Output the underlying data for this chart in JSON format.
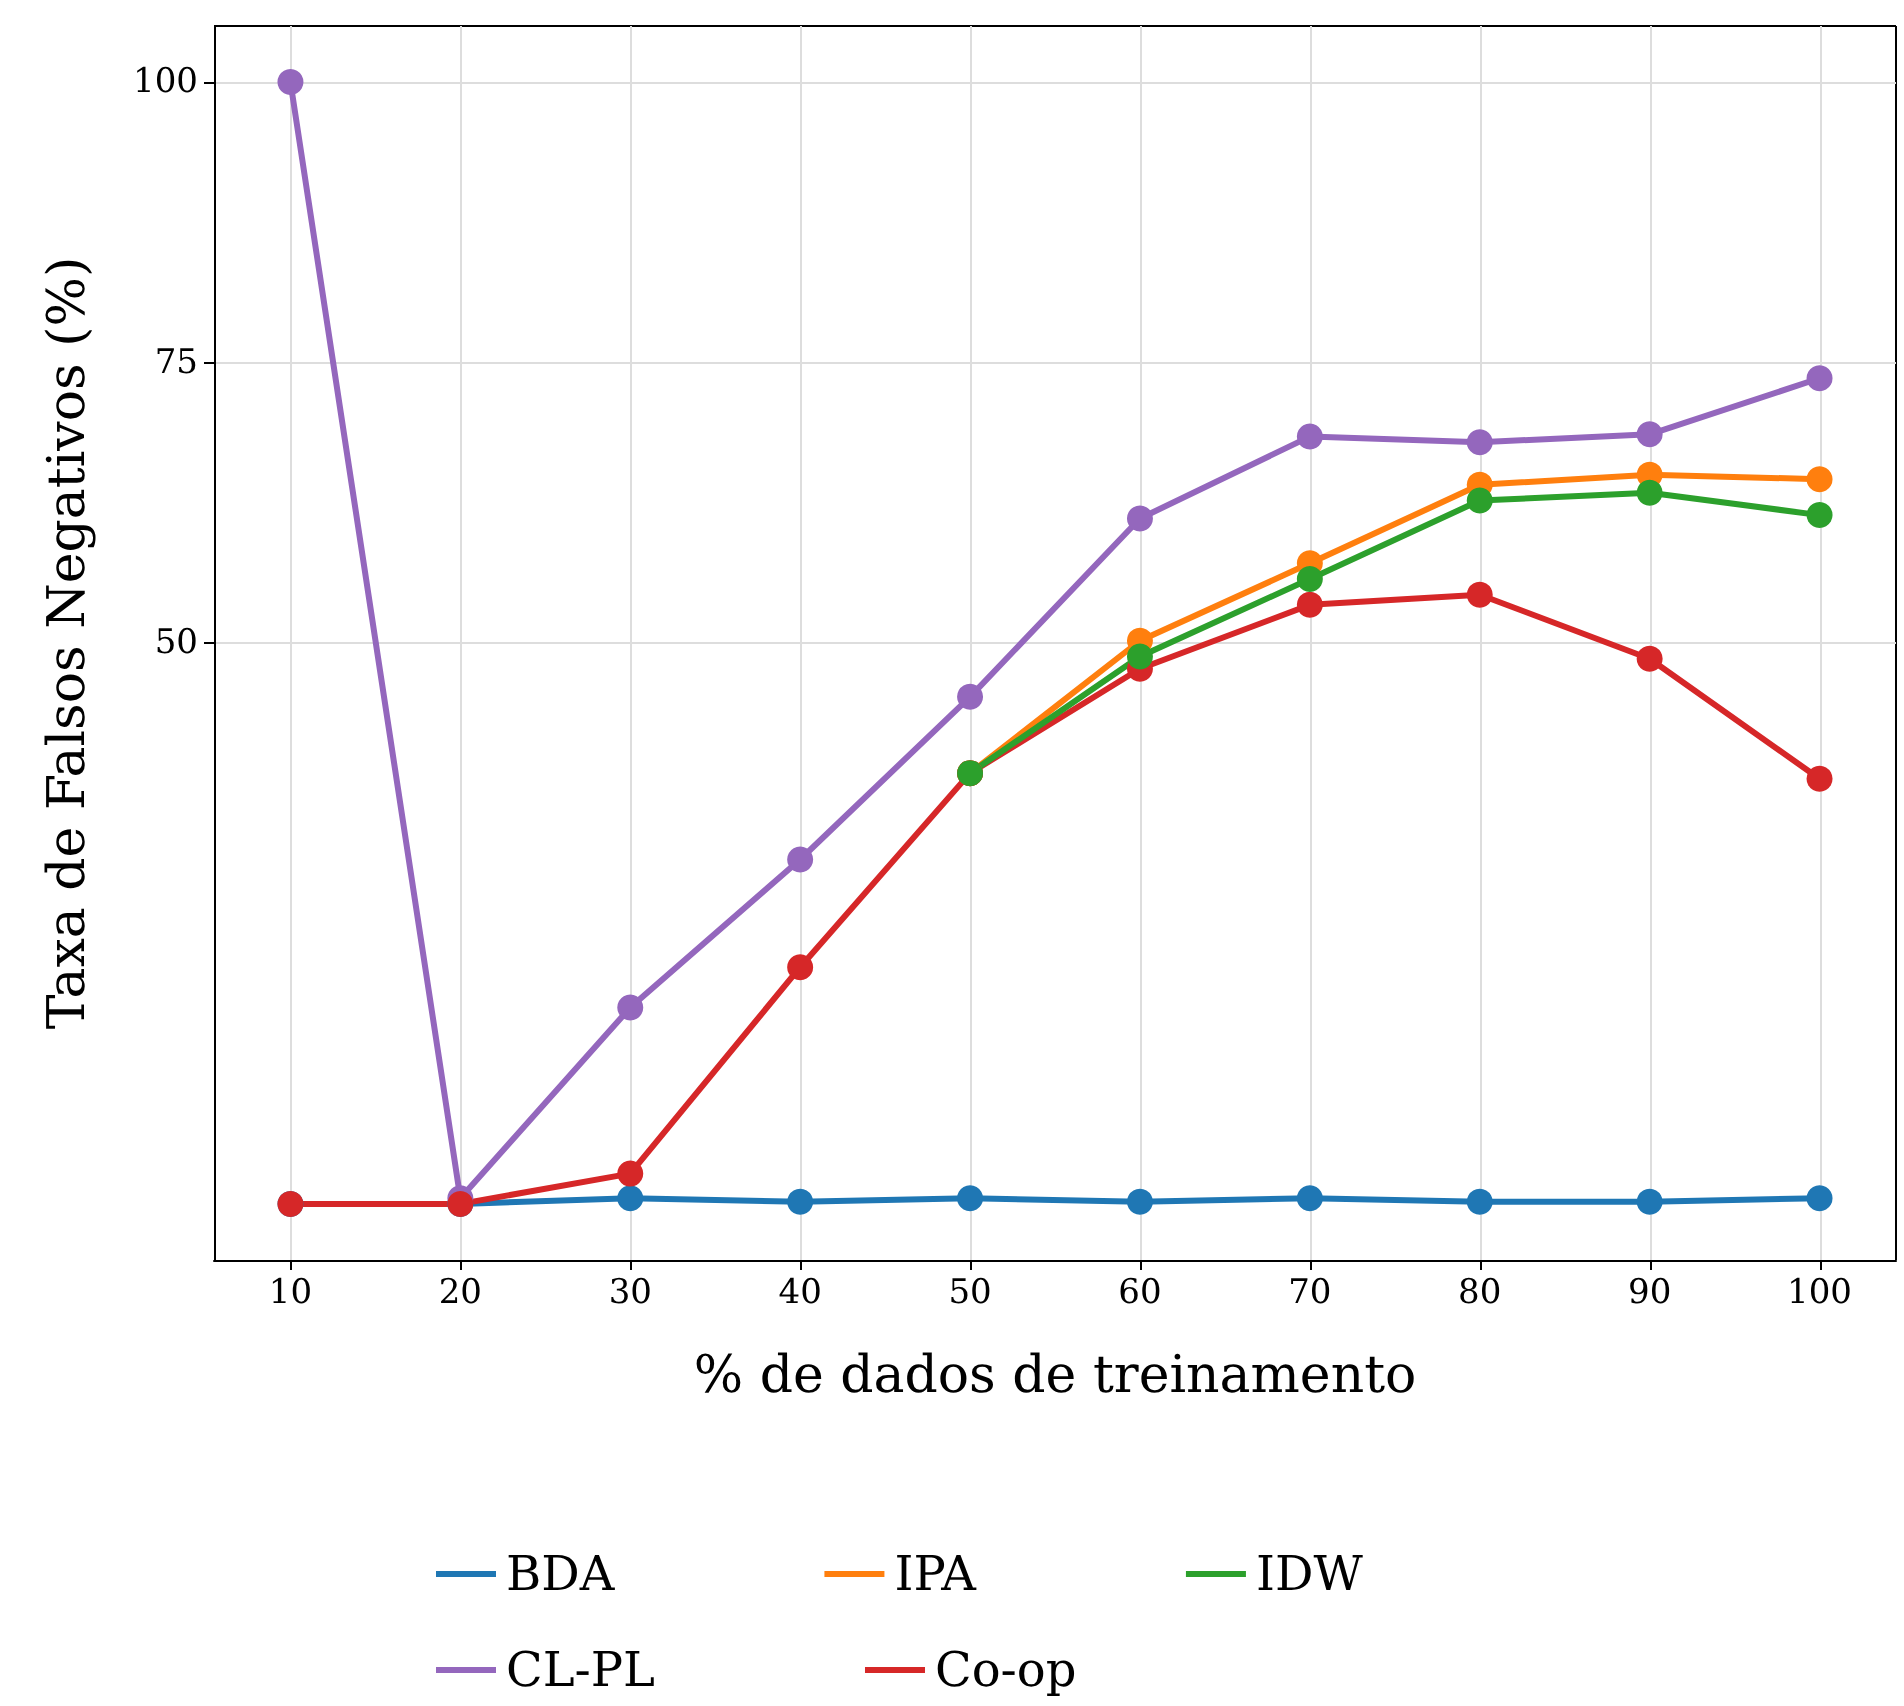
{
  "chart_data": {
    "type": "line",
    "xlabel": "% de dados de treinamento",
    "ylabel": "Taxa de Falsos Negativos (%)",
    "x": [
      10,
      20,
      30,
      40,
      50,
      60,
      70,
      80,
      90,
      100
    ],
    "series": [
      {
        "name": "BDA",
        "color": "#1f77b4",
        "values": [
          0,
          0,
          0.5,
          0.2,
          0.5,
          0.2,
          0.5,
          0.2,
          0.2,
          0.5
        ]
      },
      {
        "name": "CL-PL",
        "color": "#9467bd",
        "values": [
          100,
          0.5,
          17.5,
          30.7,
          45.2,
          61.1,
          68.4,
          67.9,
          68.6,
          73.6
        ]
      },
      {
        "name": "IPA",
        "color": "#ff7f0e",
        "values": [
          null,
          null,
          null,
          null,
          38.4,
          50.2,
          57.1,
          64.1,
          65,
          64.6
        ]
      },
      {
        "name": "Co-op",
        "color": "#d62728",
        "values": [
          0,
          0,
          2.7,
          21.1,
          38.4,
          47.7,
          53.4,
          54.3,
          48.6,
          37.9
        ]
      },
      {
        "name": "IDW",
        "color": "#2ca02c",
        "values": [
          null,
          null,
          null,
          null,
          38.4,
          48.8,
          55.7,
          62.7,
          63.4,
          61.4
        ]
      }
    ],
    "xlim": [
      5.5,
      104.5
    ],
    "xticks": [
      10,
      20,
      30,
      40,
      50,
      60,
      70,
      80,
      90,
      100
    ],
    "ylim": [
      -5,
      105
    ],
    "yticks": [
      50,
      75,
      100
    ],
    "grid": true,
    "legend": "bottom",
    "marker": "circle",
    "line_style": "solid"
  }
}
